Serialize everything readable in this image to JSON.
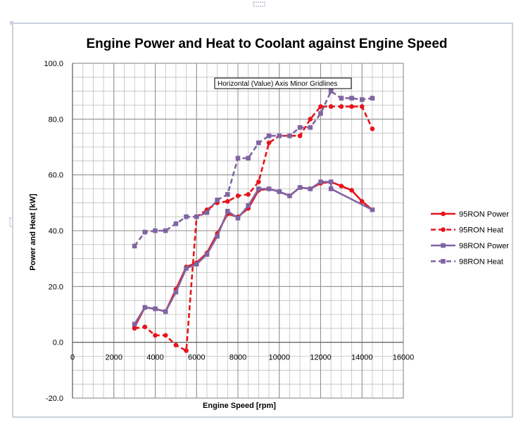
{
  "chart_data": {
    "type": "line",
    "title": "Engine Power and Heat to Coolant against Engine Speed",
    "xlabel": "Engine Speed [rpm]",
    "ylabel": "Power and Heat [kW]",
    "xlim": [
      0,
      16000
    ],
    "ylim": [
      -20,
      100
    ],
    "x_ticks": [
      0,
      2000,
      4000,
      6000,
      8000,
      10000,
      12000,
      14000,
      16000
    ],
    "y_ticks": [
      -20,
      0,
      20,
      40,
      60,
      80,
      100
    ],
    "x_tick_labels": [
      "0",
      "2000",
      "4000",
      "6000",
      "8000",
      "10000",
      "12000",
      "14000",
      "16000"
    ],
    "y_tick_labels": [
      "-20.0",
      "0.0",
      "20.0",
      "40.0",
      "60.0",
      "80.0",
      "100.0"
    ],
    "grid": true,
    "legend_position": "right",
    "tooltip": "Horizontal (Value) Axis Minor Gridlines",
    "series": [
      {
        "name": "95RON Power",
        "color": "#e8131b",
        "line_style": "solid",
        "marker": "circle",
        "x": [
          3000,
          3500,
          4000,
          4500,
          5000,
          5500,
          6000,
          6500,
          7000,
          7500,
          8000,
          8500,
          9000,
          9500,
          10000,
          10500,
          11000,
          11500,
          12000,
          12500,
          13000,
          13500,
          14000,
          14500
        ],
        "y": [
          5.5,
          12.5,
          12,
          11,
          19,
          27,
          28.5,
          32,
          39,
          46,
          45,
          48,
          54.5,
          55,
          54,
          52.5,
          55.5,
          55,
          57,
          57.5,
          56,
          54.5,
          50.5,
          47.5
        ]
      },
      {
        "name": "95RON Heat",
        "color": "#e8131b",
        "line_style": "dashed",
        "marker": "circle",
        "x": [
          3000,
          3500,
          4000,
          4500,
          5000,
          5500,
          6000,
          6500,
          7000,
          7500,
          8000,
          8500,
          9000,
          9500,
          10000,
          10500,
          11000,
          11500,
          12000,
          12500,
          13000,
          13500,
          14000,
          14500
        ],
        "y": [
          5,
          5.5,
          2.5,
          2.5,
          -1,
          -3,
          45,
          47.5,
          50,
          50.5,
          52.5,
          53,
          57.5,
          71.5,
          74,
          74,
          74,
          80,
          84.5,
          84.5,
          84.5,
          84.5,
          84.5,
          76.5
        ]
      },
      {
        "name": "98RON Power",
        "color": "#8064a2",
        "line_style": "solid",
        "marker": "square",
        "x": [
          3000,
          3500,
          4000,
          4500,
          5000,
          5500,
          6000,
          6500,
          7000,
          7500,
          8000,
          8500,
          9000,
          9500,
          10000,
          10500,
          11000,
          11500,
          12000,
          12500,
          12500,
          14500
        ],
        "y": [
          6.5,
          12.5,
          12,
          11,
          18,
          26.5,
          28,
          31.5,
          38,
          47,
          44.5,
          49,
          55,
          55,
          54,
          52.5,
          55.5,
          55,
          57.5,
          57.5,
          55,
          47.5
        ]
      },
      {
        "name": "98RON Heat",
        "color": "#8064a2",
        "line_style": "dashed",
        "marker": "square",
        "x": [
          3000,
          3500,
          4000,
          4500,
          5000,
          5500,
          6000,
          6500,
          7000,
          7500,
          8000,
          8500,
          9000,
          9500,
          10000,
          10500,
          11000,
          11500,
          12000,
          12500,
          13000,
          13500,
          14000,
          14500
        ],
        "y": [
          34.5,
          39.5,
          40,
          40,
          42.5,
          45,
          45,
          46.5,
          51,
          53,
          66,
          66,
          71.5,
          74,
          74,
          74,
          77,
          77,
          82,
          90,
          87.5,
          87.5,
          87,
          87.5
        ]
      }
    ]
  }
}
